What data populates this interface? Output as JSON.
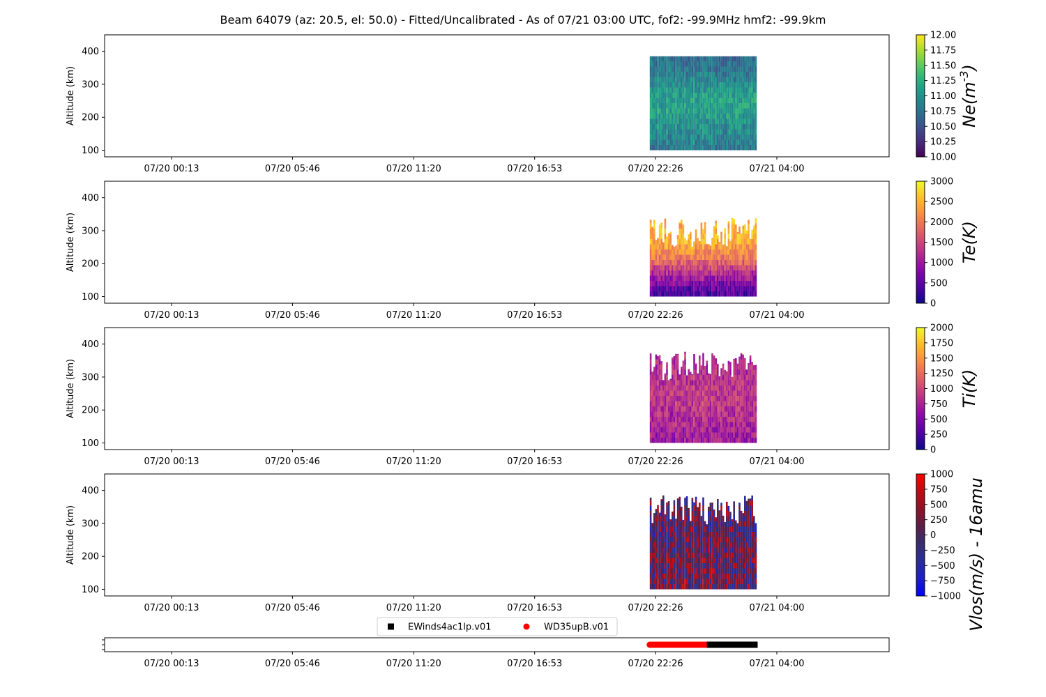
{
  "figure": {
    "title": "Beam 64079 (az: 20.5, el: 50.0) - Fitted/Uncalibrated - As of 07/21 03:00 UTC, fof2: -99.9MHz  hmf2: -99.9km"
  },
  "chart_data": [
    {
      "type": "heatmap",
      "panel": "ne",
      "ylabel": "Altitude (km)",
      "yticks": [
        100,
        200,
        300,
        400
      ],
      "ylim": [
        80,
        450
      ],
      "xticks": [
        "07/20 00:13",
        "07/20 05:46",
        "07/20 11:20",
        "07/20 16:53",
        "07/20 22:26",
        "07/21 04:00"
      ],
      "data_x_range": [
        "07/20 22:10",
        "07/21 03:00"
      ],
      "data_y_range": [
        100,
        385
      ],
      "colorbar": {
        "label": "Ne(m^-3)",
        "vmin": 10.0,
        "vmax": 12.0,
        "ticks": [
          "10.00",
          "10.25",
          "10.50",
          "10.75",
          "11.00",
          "11.25",
          "11.50",
          "11.75",
          "12.00"
        ],
        "colormap": "viridis"
      },
      "profile": {
        "altitudes": [
          100,
          150,
          200,
          250,
          300,
          350,
          385
        ],
        "values": [
          10.8,
          10.95,
          11.1,
          11.15,
          10.9,
          10.75,
          10.7
        ]
      }
    },
    {
      "type": "heatmap",
      "panel": "te",
      "ylabel": "Altitude (km)",
      "yticks": [
        100,
        200,
        300,
        400
      ],
      "ylim": [
        80,
        450
      ],
      "xticks": [
        "07/20 00:13",
        "07/20 05:46",
        "07/20 11:20",
        "07/20 16:53",
        "07/20 22:26",
        "07/21 04:00"
      ],
      "data_x_range": [
        "07/20 22:10",
        "07/21 03:00"
      ],
      "data_y_range": [
        100,
        340
      ],
      "colorbar": {
        "label": "Te(K)",
        "vmin": 0,
        "vmax": 3000,
        "ticks": [
          "0",
          "500",
          "1000",
          "1500",
          "2000",
          "2500",
          "3000"
        ],
        "colormap": "plasma"
      },
      "profile": {
        "altitudes": [
          100,
          120,
          150,
          180,
          210,
          240,
          270,
          300
        ],
        "values": [
          400,
          600,
          1000,
          1500,
          2000,
          2300,
          2500,
          2500
        ]
      }
    },
    {
      "type": "heatmap",
      "panel": "ti",
      "ylabel": "Altitude (km)",
      "yticks": [
        100,
        200,
        300,
        400
      ],
      "ylim": [
        80,
        450
      ],
      "xticks": [
        "07/20 00:13",
        "07/20 05:46",
        "07/20 11:20",
        "07/20 16:53",
        "07/20 22:26",
        "07/21 04:00"
      ],
      "data_x_range": [
        "07/20 22:10",
        "07/21 03:00"
      ],
      "data_y_range": [
        100,
        380
      ],
      "colorbar": {
        "label": "Ti(K)",
        "vmin": 0,
        "vmax": 2000,
        "ticks": [
          "0",
          "250",
          "500",
          "750",
          "1000",
          "1250",
          "1500",
          "1750",
          "2000"
        ],
        "colormap": "plasma"
      },
      "profile": {
        "altitudes": [
          100,
          150,
          200,
          250,
          300,
          350
        ],
        "values": [
          650,
          750,
          850,
          900,
          800,
          800
        ]
      }
    },
    {
      "type": "heatmap",
      "panel": "vlos",
      "ylabel": "Altitude (km)",
      "yticks": [
        100,
        200,
        300,
        400
      ],
      "ylim": [
        80,
        450
      ],
      "xticks": [
        "07/20 00:13",
        "07/20 05:46",
        "07/20 11:20",
        "07/20 16:53",
        "07/20 22:26",
        "07/21 04:00"
      ],
      "data_x_range": [
        "07/20 22:10",
        "07/21 03:00"
      ],
      "data_y_range": [
        100,
        385
      ],
      "colorbar": {
        "label": "Vlos(m/s) - 16amu",
        "vmin": -1000,
        "vmax": 1000,
        "ticks": [
          "−1000",
          "−750",
          "−500",
          "−250",
          "0",
          "250",
          "500",
          "750",
          "1000"
        ],
        "colormap": "bwr-dark"
      },
      "profile": {
        "altitudes": [
          100,
          200,
          300,
          385
        ],
        "values": [
          150,
          100,
          0,
          0
        ]
      }
    },
    {
      "type": "scatter",
      "panel": "modes",
      "xticks": [
        "07/20 00:13",
        "07/20 05:46",
        "07/20 11:20",
        "07/20 16:53",
        "07/20 22:26",
        "07/21 04:00"
      ],
      "legend": {
        "placement": "top-center",
        "entries": [
          "EWinds4ac1lp.v01",
          "WD35upB.v01"
        ]
      },
      "series": [
        {
          "name": "WD35upB.v01",
          "color": "#ff0000",
          "marker": "circle",
          "x_range": [
            "07/20 22:10",
            "07/21 00:56"
          ]
        },
        {
          "name": "EWinds4ac1lp.v01",
          "color": "#000000",
          "marker": "square",
          "x_range": [
            "07/21 00:56",
            "07/21 03:00"
          ]
        }
      ]
    }
  ]
}
